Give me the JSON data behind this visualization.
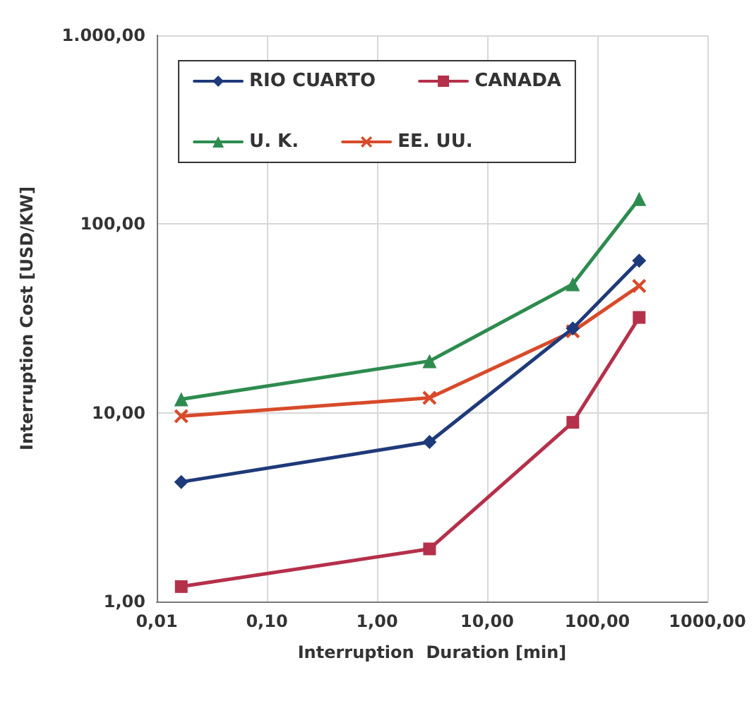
{
  "chart_data": {
    "type": "line",
    "xlabel": "Interruption  Duration [min]",
    "ylabel": "Interruption Cost [USD/KW]",
    "x": [
      0.0167,
      3,
      60,
      240
    ],
    "series": [
      {
        "name": "RIO CUARTO",
        "color": "#1f3a7a",
        "marker": "diamond",
        "values": [
          4.3,
          7.0,
          28,
          64
        ]
      },
      {
        "name": "CANADA",
        "color": "#b5304a",
        "marker": "square",
        "values": [
          1.2,
          1.9,
          8.9,
          32
        ]
      },
      {
        "name": "U. K.",
        "color": "#2e8b4f",
        "marker": "triangle",
        "values": [
          11.8,
          18.8,
          48,
          136
        ]
      },
      {
        "name": "EE. UU.",
        "color": "#d84a2a",
        "marker": "cross",
        "values": [
          9.6,
          12,
          27,
          47
        ]
      }
    ],
    "log": "xy",
    "xlim": [
      0.01,
      1000
    ],
    "xticks": [
      {
        "value": 0.01,
        "label": "0,01"
      },
      {
        "value": 0.1,
        "label": "0,10"
      },
      {
        "value": 1,
        "label": "1,00"
      },
      {
        "value": 10,
        "label": "10,00"
      },
      {
        "value": 100,
        "label": "100,00"
      },
      {
        "value": 1000,
        "label": "1000,00"
      }
    ],
    "ylim": [
      1,
      1000
    ],
    "yticks": [
      {
        "value": 1,
        "label": "1,00"
      },
      {
        "value": 10,
        "label": "10,00"
      },
      {
        "value": 100,
        "label": "100,00"
      },
      {
        "value": 1000,
        "label": "1.000,00"
      }
    ],
    "grid": true,
    "legend": "top",
    "line_style": "solid"
  }
}
